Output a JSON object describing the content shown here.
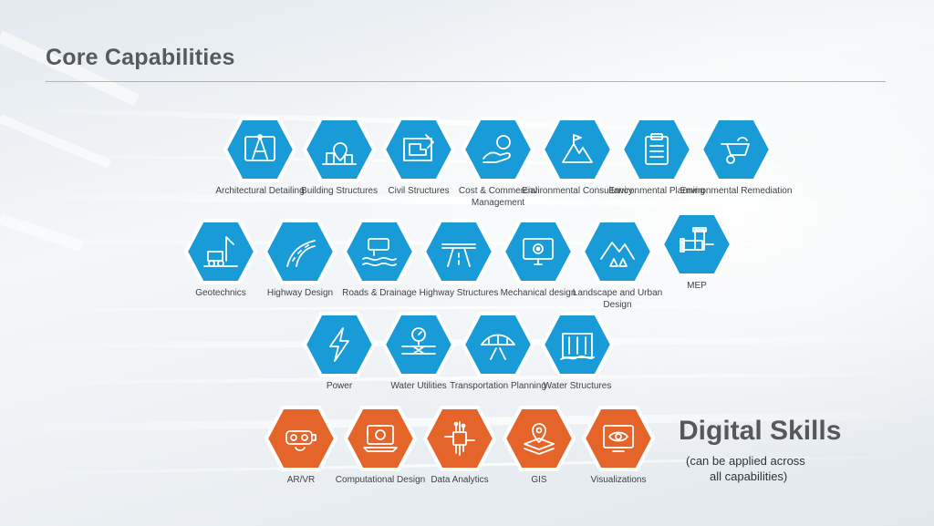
{
  "slide": {
    "title": "Core Capabilities",
    "colors": {
      "blue_hex": "#199bd8",
      "orange_hex": "#e4642a",
      "outline": "#ffffff"
    }
  },
  "capabilities": [
    {
      "label": "Architectural Detailing",
      "icon": "blueprint-compass-icon"
    },
    {
      "label": "Building Structures",
      "icon": "building-location-pin-icon"
    },
    {
      "label": "Civil Structures",
      "icon": "plan-drawing-icon"
    },
    {
      "label": "Cost & Commercial Management",
      "icon": "hand-coin-icon"
    },
    {
      "label": "Environmental Consultancy",
      "icon": "mountain-flag-icon"
    },
    {
      "label": "Environmental Planning",
      "icon": "clipboard-checklist-icon"
    },
    {
      "label": "Environmental Remediation",
      "icon": "wheelbarrow-icon"
    },
    {
      "label": "Geotechnics",
      "icon": "drilling-rig-icon"
    },
    {
      "label": "Highway Design",
      "icon": "curved-road-icon"
    },
    {
      "label": "Roads & Drainage",
      "icon": "drainage-pipe-icon"
    },
    {
      "label": "Highway Structures",
      "icon": "highway-overpass-icon"
    },
    {
      "label": "Mechanical design",
      "icon": "monitor-gear-icon"
    },
    {
      "label": "Landscape and Urban Design",
      "icon": "mountains-trees-icon"
    },
    {
      "label": "MEP",
      "icon": "pipe-fitting-icon"
    },
    {
      "label": "Power",
      "icon": "lightning-bolt-icon"
    },
    {
      "label": "Water Utilities",
      "icon": "water-valve-gauge-icon"
    },
    {
      "label": "Transportation Planning",
      "icon": "bridge-road-icon"
    },
    {
      "label": "Water Structures",
      "icon": "dam-icon"
    }
  ],
  "digital": {
    "title": "Digital Skills",
    "subtitle_line1": "(can be applied across",
    "subtitle_line2": "all capabilities)",
    "items": [
      {
        "label": "AR/VR",
        "icon": "vr-headset-icon"
      },
      {
        "label": "Computational Design",
        "icon": "laptop-gear-icon"
      },
      {
        "label": "Data  Analytics",
        "icon": "circuit-chip-icon"
      },
      {
        "label": "GIS",
        "icon": "map-pin-layers-icon"
      },
      {
        "label": "Visualizations",
        "icon": "eye-screen-icon"
      }
    ]
  }
}
